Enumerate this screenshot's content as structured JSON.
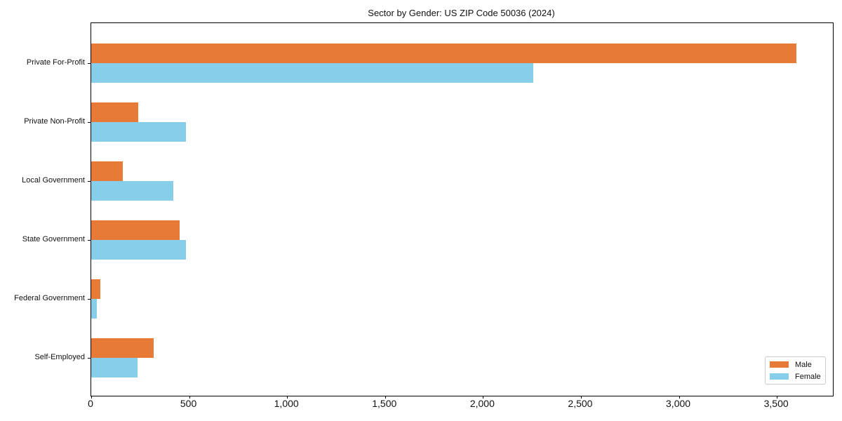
{
  "figure": {
    "background": "#ffffff",
    "border_color": "#000000"
  },
  "chart_data": {
    "type": "bar",
    "orientation": "horizontal",
    "title": "Sector by Gender: US ZIP Code 50036 (2024)",
    "categories": [
      "Private For-Profit",
      "Private Non-Profit",
      "Local Government",
      "State Government",
      "Federal Government",
      "Self-Employed"
    ],
    "series": [
      {
        "name": "Male",
        "color": "#e87a38",
        "values": [
          3600,
          240,
          160,
          450,
          45,
          320
        ]
      },
      {
        "name": "Female",
        "color": "#87ceeb",
        "values": [
          2255,
          485,
          420,
          485,
          30,
          235
        ]
      }
    ],
    "xlabel": "",
    "ylabel": "",
    "xlim": [
      0,
      3786
    ],
    "xticks": [
      0,
      500,
      1000,
      1500,
      2000,
      2500,
      3000,
      3500
    ],
    "xtick_labels": [
      "0",
      "500",
      "1,000",
      "1,500",
      "2,000",
      "2,500",
      "3,000",
      "3,500"
    ],
    "grid": false,
    "legend": {
      "position": "lower right",
      "labels": [
        "Male",
        "Female"
      ]
    }
  }
}
